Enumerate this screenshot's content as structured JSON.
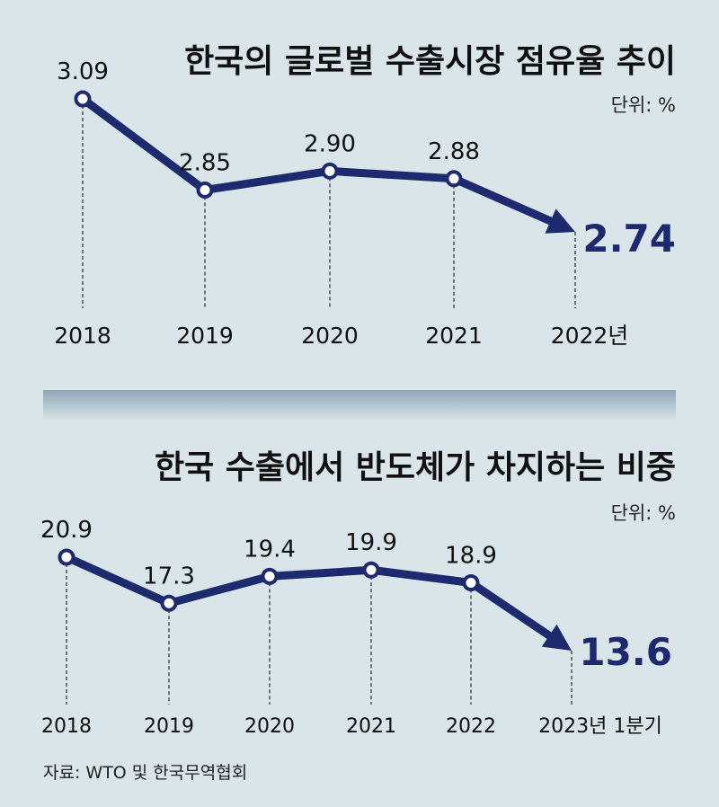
{
  "source": "자료: WTO 및 한국무역협회",
  "chart_data": [
    {
      "type": "line",
      "title": "한국의 글로벌 수출시장 점유율 추이",
      "unit": "단위: %",
      "categories": [
        "2018",
        "2019",
        "2020",
        "2021",
        "2022년"
      ],
      "values": [
        3.09,
        2.85,
        2.9,
        2.88,
        2.74
      ],
      "value_labels": [
        "3.09",
        "2.85",
        "2.90",
        "2.88",
        "2.74"
      ],
      "ylim": [
        2.6,
        3.2
      ],
      "last_point_style": "arrowhead, highlighted",
      "color": "#1d2a6e"
    },
    {
      "type": "line",
      "title": "한국 수출에서 반도체가 차지하는 비중",
      "unit": "단위: %",
      "categories": [
        "2018",
        "2019",
        "2020",
        "2021",
        "2022",
        "2023년 1분기"
      ],
      "values": [
        20.9,
        17.3,
        19.4,
        19.9,
        18.9,
        13.6
      ],
      "value_labels": [
        "20.9",
        "17.3",
        "19.4",
        "19.9",
        "18.9",
        "13.6"
      ],
      "ylim": [
        11,
        22
      ],
      "last_point_style": "arrowhead, highlighted",
      "color": "#1d2a6e"
    }
  ]
}
